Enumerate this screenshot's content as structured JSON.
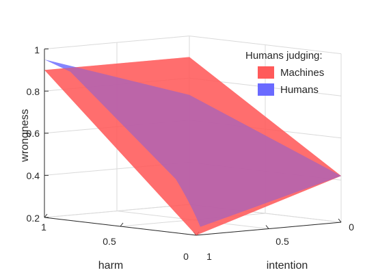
{
  "chart_data": {
    "type": "surface3d",
    "x_axis": {
      "label": "harm",
      "range": [
        0,
        1
      ],
      "ticks": [
        "0",
        "0.5",
        "1"
      ]
    },
    "y_axis": {
      "label": "intention",
      "range": [
        0,
        1
      ],
      "ticks": [
        "0",
        "0.5",
        "1"
      ]
    },
    "z_axis": {
      "label": "wrongness",
      "range": [
        0.2,
        1
      ],
      "ticks": [
        "0.2",
        "0.4",
        "0.6",
        "0.8",
        "1"
      ]
    },
    "legend": {
      "title": "Humans judging:",
      "placement": "top-right",
      "entries": [
        {
          "name": "Machines",
          "color": "#ff5a5a"
        },
        {
          "name": "Humans",
          "color": "#6a6aff"
        }
      ]
    },
    "grid": true,
    "series": [
      {
        "name": "Machines",
        "color": "#ff5a5a",
        "corner_wrongness": {
          "harm1_intention1": 0.9,
          "harm1_intention0": 0.9,
          "harm0_intention0": 0.42,
          "harm0_intention1": 0.2
        }
      },
      {
        "name": "Humans",
        "color": "#6a6aff",
        "corner_wrongness": {
          "harm1_intention1": 0.95,
          "harm1_intention0": 0.72,
          "harm0_intention0": 0.42,
          "harm0_intention1": 0.22
        }
      }
    ]
  }
}
